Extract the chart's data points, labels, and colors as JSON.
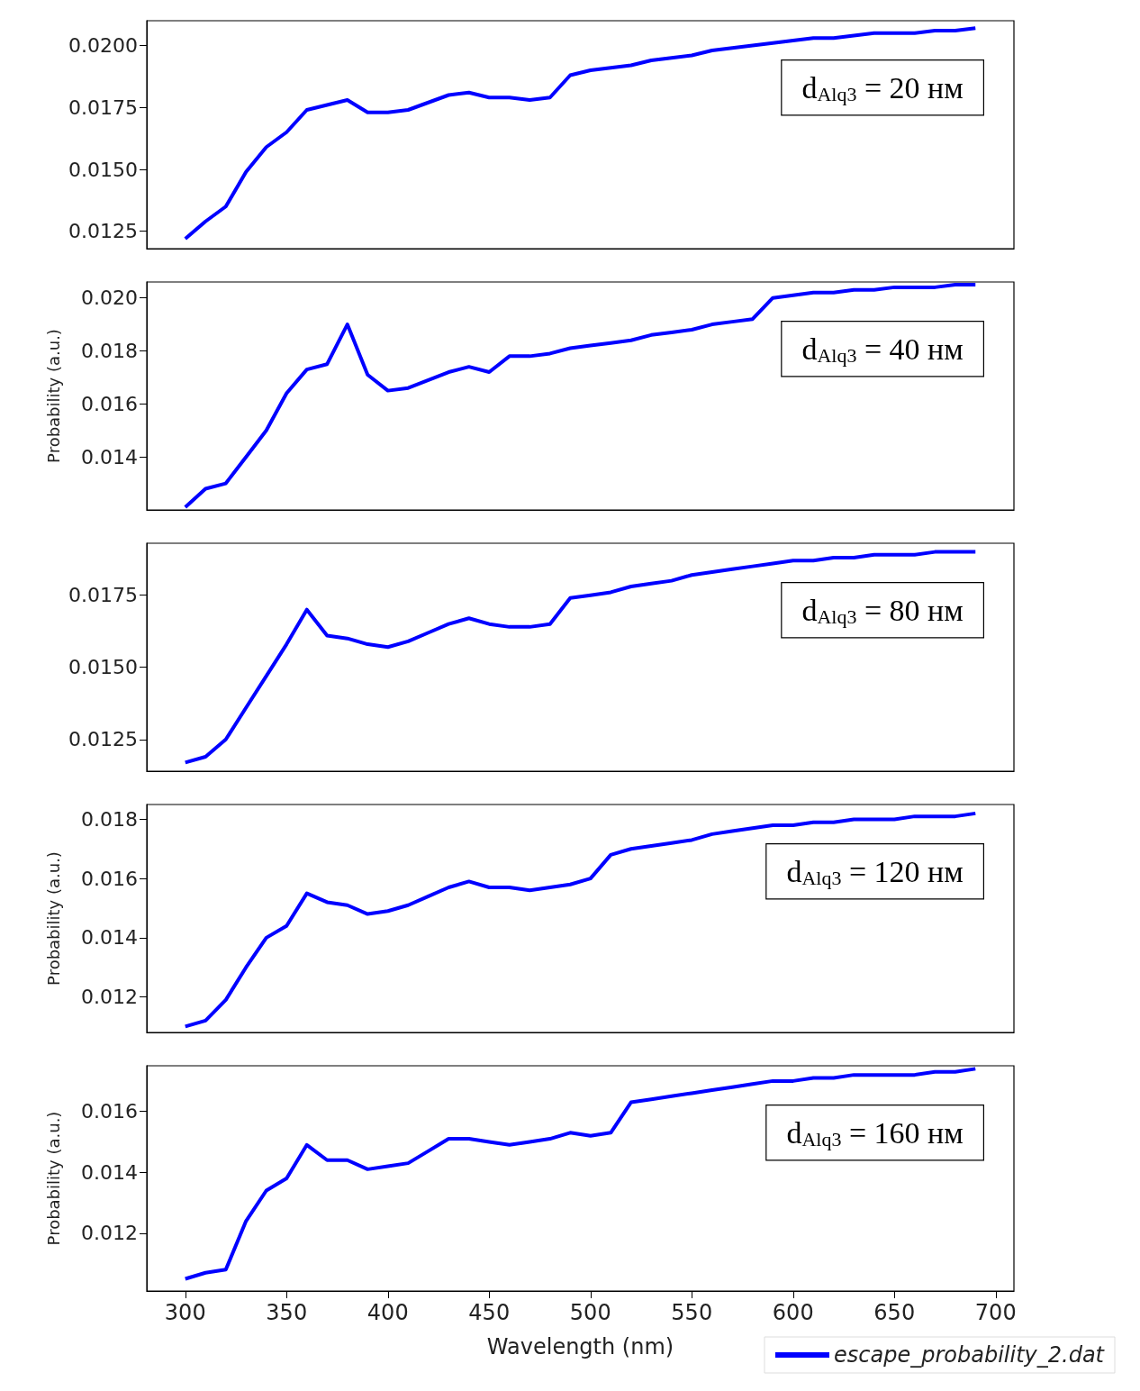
{
  "chart_data": [
    {
      "type": "line",
      "x": [
        300,
        310,
        320,
        330,
        340,
        350,
        360,
        370,
        380,
        390,
        400,
        410,
        420,
        430,
        440,
        450,
        460,
        470,
        480,
        490,
        500,
        510,
        520,
        530,
        540,
        550,
        560,
        570,
        580,
        590,
        600,
        610,
        620,
        630,
        640,
        650,
        660,
        670,
        680,
        690
      ],
      "series": [
        {
          "color": "#0000ff",
          "values": [
            0.0122,
            0.0129,
            0.0135,
            0.0149,
            0.0159,
            0.0165,
            0.0174,
            0.0176,
            0.0178,
            0.0173,
            0.0173,
            0.0174,
            0.0177,
            0.018,
            0.0181,
            0.0179,
            0.0179,
            0.0178,
            0.0179,
            0.0188,
            0.019,
            0.0191,
            0.0192,
            0.0194,
            0.0195,
            0.0196,
            0.0198,
            0.0199,
            0.02,
            0.0201,
            0.0202,
            0.0203,
            0.0203,
            0.0204,
            0.0205,
            0.0205,
            0.0205,
            0.0206,
            0.0206,
            0.0207
          ]
        }
      ],
      "xlim": [
        281,
        709
      ],
      "ylim": [
        0.0118,
        0.021
      ],
      "yticks": [
        {
          "value": 0.0125,
          "label": "0.0125"
        },
        {
          "value": 0.015,
          "label": "0.0150"
        },
        {
          "value": 0.0175,
          "label": "0.0175"
        },
        {
          "value": 0.02,
          "label": "0.0200"
        }
      ],
      "tick_labels": "y",
      "annotations": [
        "d$_{Alq3}$ = 20 нм"
      ]
    },
    {
      "type": "line",
      "x": [
        300,
        310,
        320,
        330,
        340,
        350,
        360,
        370,
        380,
        390,
        400,
        410,
        420,
        430,
        440,
        450,
        460,
        470,
        480,
        490,
        500,
        510,
        520,
        530,
        540,
        550,
        560,
        570,
        580,
        590,
        600,
        610,
        620,
        630,
        640,
        650,
        660,
        670,
        680,
        690
      ],
      "series": [
        {
          "color": "#0000ff",
          "values": [
            0.0121,
            0.0128,
            0.013,
            0.014,
            0.015,
            0.0164,
            0.0173,
            0.0175,
            0.019,
            0.0171,
            0.0165,
            0.0166,
            0.0169,
            0.0172,
            0.0174,
            0.0172,
            0.0178,
            0.0178,
            0.0179,
            0.0181,
            0.0182,
            0.0183,
            0.0184,
            0.0186,
            0.0187,
            0.0188,
            0.019,
            0.0191,
            0.0192,
            0.02,
            0.0201,
            0.0202,
            0.0202,
            0.0203,
            0.0203,
            0.0204,
            0.0204,
            0.0204,
            0.0205,
            0.0205
          ]
        }
      ],
      "xlim": [
        281,
        709
      ],
      "ylim": [
        0.012,
        0.0206
      ],
      "ylabel": "Probability (a.u.)",
      "yticks": [
        {
          "value": 0.014,
          "label": "0.014"
        },
        {
          "value": 0.016,
          "label": "0.016"
        },
        {
          "value": 0.018,
          "label": "0.018"
        },
        {
          "value": 0.02,
          "label": "0.020"
        }
      ],
      "tick_labels": "y",
      "annotations": [
        "d$_{Alq3}$ = 40 нм"
      ]
    },
    {
      "type": "line",
      "x": [
        300,
        310,
        320,
        330,
        340,
        350,
        360,
        370,
        380,
        390,
        400,
        410,
        420,
        430,
        440,
        450,
        460,
        470,
        480,
        490,
        500,
        510,
        520,
        530,
        540,
        550,
        560,
        570,
        580,
        590,
        600,
        610,
        620,
        630,
        640,
        650,
        660,
        670,
        680,
        690
      ],
      "series": [
        {
          "color": "#0000ff",
          "values": [
            0.0117,
            0.0119,
            0.0125,
            0.0136,
            0.0147,
            0.0158,
            0.017,
            0.0161,
            0.016,
            0.0158,
            0.0157,
            0.0159,
            0.0162,
            0.0165,
            0.0167,
            0.0165,
            0.0164,
            0.0164,
            0.0165,
            0.0174,
            0.0175,
            0.0176,
            0.0178,
            0.0179,
            0.018,
            0.0182,
            0.0183,
            0.0184,
            0.0185,
            0.0186,
            0.0187,
            0.0187,
            0.0188,
            0.0188,
            0.0189,
            0.0189,
            0.0189,
            0.019,
            0.019,
            0.019
          ]
        }
      ],
      "xlim": [
        281,
        709
      ],
      "ylim": [
        0.0114,
        0.0193
      ],
      "yticks": [
        {
          "value": 0.0125,
          "label": "0.0125"
        },
        {
          "value": 0.015,
          "label": "0.0150"
        },
        {
          "value": 0.0175,
          "label": "0.0175"
        }
      ],
      "tick_labels": "y",
      "annotations": [
        "d$_{Alq3}$ = 80 нм"
      ]
    },
    {
      "type": "line",
      "x": [
        300,
        310,
        320,
        330,
        340,
        350,
        360,
        370,
        380,
        390,
        400,
        410,
        420,
        430,
        440,
        450,
        460,
        470,
        480,
        490,
        500,
        510,
        520,
        530,
        540,
        550,
        560,
        570,
        580,
        590,
        600,
        610,
        620,
        630,
        640,
        650,
        660,
        670,
        680,
        690
      ],
      "series": [
        {
          "color": "#0000ff",
          "values": [
            0.011,
            0.0112,
            0.0119,
            0.013,
            0.014,
            0.0144,
            0.0155,
            0.0152,
            0.0151,
            0.0148,
            0.0149,
            0.0151,
            0.0154,
            0.0157,
            0.0159,
            0.0157,
            0.0157,
            0.0156,
            0.0157,
            0.0158,
            0.016,
            0.0168,
            0.017,
            0.0171,
            0.0172,
            0.0173,
            0.0175,
            0.0176,
            0.0177,
            0.0178,
            0.0178,
            0.0179,
            0.0179,
            0.018,
            0.018,
            0.018,
            0.0181,
            0.0181,
            0.0181,
            0.0182
          ]
        }
      ],
      "xlim": [
        281,
        709
      ],
      "ylim": [
        0.0108,
        0.0185
      ],
      "ylabel": "Probability (a.u.)",
      "yticks": [
        {
          "value": 0.012,
          "label": "0.012"
        },
        {
          "value": 0.014,
          "label": "0.014"
        },
        {
          "value": 0.016,
          "label": "0.016"
        },
        {
          "value": 0.018,
          "label": "0.018"
        }
      ],
      "tick_labels": "y",
      "annotations": [
        "d$_{Alq3}$ = 120 нм"
      ]
    },
    {
      "type": "line",
      "x": [
        300,
        310,
        320,
        330,
        340,
        350,
        360,
        370,
        380,
        390,
        400,
        410,
        420,
        430,
        440,
        450,
        460,
        470,
        480,
        490,
        500,
        510,
        520,
        530,
        540,
        550,
        560,
        570,
        580,
        590,
        600,
        610,
        620,
        630,
        640,
        650,
        660,
        670,
        680,
        690
      ],
      "series": [
        {
          "name": "escape_probability_2.dat",
          "color": "#0000ff",
          "values": [
            0.0105,
            0.0107,
            0.0108,
            0.0124,
            0.0134,
            0.0138,
            0.0149,
            0.0144,
            0.0144,
            0.0141,
            0.0142,
            0.0143,
            0.0147,
            0.0151,
            0.0151,
            0.015,
            0.0149,
            0.015,
            0.0151,
            0.0153,
            0.0152,
            0.0153,
            0.0163,
            0.0164,
            0.0165,
            0.0166,
            0.0167,
            0.0168,
            0.0169,
            0.017,
            0.017,
            0.0171,
            0.0171,
            0.0172,
            0.0172,
            0.0172,
            0.0172,
            0.0173,
            0.0173,
            0.0174
          ]
        }
      ],
      "xlim": [
        281,
        709
      ],
      "ylim": [
        0.0101,
        0.0175
      ],
      "xlabel": "Wavelength (nm)",
      "ylabel": "Probability (a.u.)",
      "xticks": [
        300,
        350,
        400,
        450,
        500,
        550,
        600,
        650,
        700
      ],
      "yticks": [
        {
          "value": 0.012,
          "label": "0.012"
        },
        {
          "value": 0.014,
          "label": "0.014"
        },
        {
          "value": 0.016,
          "label": "0.016"
        }
      ],
      "legend": "bottom right",
      "annotations": [
        "d$_{Alq3}$ = 160 нм"
      ]
    }
  ]
}
